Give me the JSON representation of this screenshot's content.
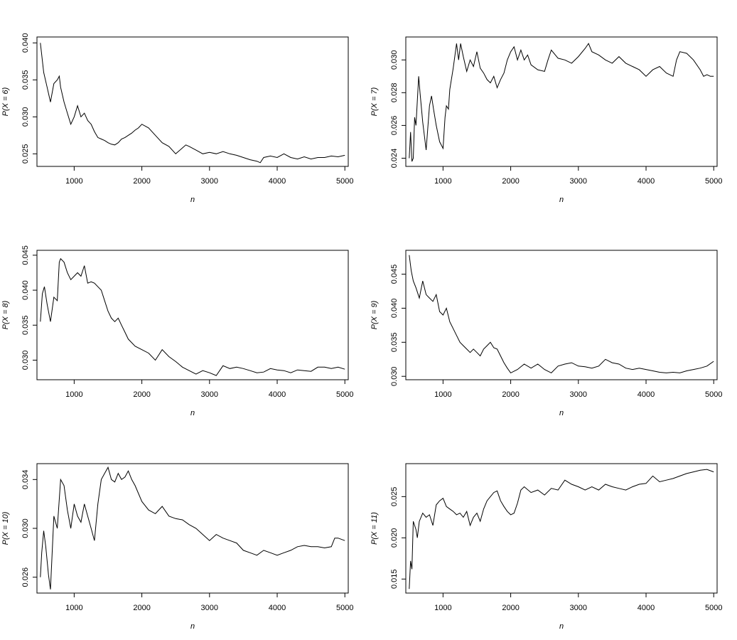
{
  "figure": {
    "background": "#ffffff",
    "line_color": "#000000"
  },
  "chart_data": [
    {
      "type": "line",
      "xlabel": "n",
      "ylabel": "P(X = 6)",
      "xlim": [
        450,
        5050
      ],
      "ylim": [
        0.0233,
        0.0408
      ],
      "xticks": [
        1000,
        2000,
        3000,
        4000,
        5000
      ],
      "yticks": [
        0.025,
        0.03,
        0.035,
        0.04
      ],
      "ytick_labels": [
        "0.025",
        "0.030",
        "0.035",
        "0.040"
      ],
      "grid": false,
      "series": [
        {
          "x": [
            500,
            550,
            600,
            650,
            700,
            750,
            780,
            800,
            850,
            900,
            950,
            1000,
            1050,
            1100,
            1150,
            1200,
            1250,
            1300,
            1350,
            1400,
            1450,
            1500,
            1550,
            1600,
            1650,
            1700,
            1750,
            1800,
            1850,
            1900,
            1950,
            2000,
            2100,
            2200,
            2300,
            2400,
            2500,
            2600,
            2650,
            2700,
            2800,
            2900,
            3000,
            3100,
            3200,
            3300,
            3400,
            3500,
            3600,
            3700,
            3750,
            3800,
            3900,
            4000,
            4100,
            4200,
            4300,
            4400,
            4500,
            4600,
            4700,
            4800,
            4900,
            5000
          ],
          "y": [
            0.04,
            0.036,
            0.034,
            0.032,
            0.0345,
            0.035,
            0.0355,
            0.034,
            0.032,
            0.0305,
            0.029,
            0.03,
            0.0315,
            0.03,
            0.0305,
            0.0295,
            0.029,
            0.028,
            0.0272,
            0.027,
            0.0268,
            0.0265,
            0.0263,
            0.0262,
            0.0265,
            0.027,
            0.0272,
            0.0275,
            0.0278,
            0.0282,
            0.0285,
            0.029,
            0.0285,
            0.0275,
            0.0265,
            0.026,
            0.025,
            0.0258,
            0.0262,
            0.026,
            0.0255,
            0.025,
            0.0252,
            0.025,
            0.0253,
            0.025,
            0.0248,
            0.0245,
            0.0242,
            0.024,
            0.0238,
            0.0245,
            0.0247,
            0.0245,
            0.025,
            0.0245,
            0.0243,
            0.0246,
            0.0243,
            0.0245,
            0.0245,
            0.0247,
            0.0246,
            0.0248
          ]
        }
      ]
    },
    {
      "type": "line",
      "xlabel": "n",
      "ylabel": "P(X = 7)",
      "xlim": [
        450,
        5050
      ],
      "ylim": [
        0.0235,
        0.0314
      ],
      "xticks": [
        1000,
        2000,
        3000,
        4000,
        5000
      ],
      "yticks": [
        0.024,
        0.026,
        0.028,
        0.03
      ],
      "ytick_labels": [
        "0.024",
        "0.026",
        "0.028",
        "0.030"
      ],
      "grid": false,
      "series": [
        {
          "x": [
            500,
            520,
            540,
            560,
            580,
            600,
            620,
            640,
            660,
            700,
            750,
            800,
            830,
            860,
            900,
            950,
            1000,
            1030,
            1050,
            1080,
            1100,
            1150,
            1200,
            1230,
            1260,
            1300,
            1350,
            1400,
            1450,
            1500,
            1550,
            1600,
            1650,
            1700,
            1750,
            1800,
            1850,
            1900,
            1950,
            2000,
            2050,
            2100,
            2150,
            2200,
            2250,
            2300,
            2400,
            2500,
            2550,
            2600,
            2700,
            2800,
            2900,
            3000,
            3100,
            3150,
            3200,
            3300,
            3400,
            3500,
            3600,
            3700,
            3800,
            3900,
            4000,
            4100,
            4200,
            4300,
            4400,
            4450,
            4500,
            4600,
            4700,
            4800,
            4850,
            4900,
            4950,
            5000
          ],
          "y": [
            0.024,
            0.0256,
            0.0238,
            0.024,
            0.0265,
            0.026,
            0.0275,
            0.029,
            0.028,
            0.0262,
            0.0245,
            0.0272,
            0.0278,
            0.027,
            0.026,
            0.025,
            0.0246,
            0.0265,
            0.0272,
            0.027,
            0.0282,
            0.0295,
            0.031,
            0.03,
            0.031,
            0.0302,
            0.0293,
            0.03,
            0.0296,
            0.0305,
            0.0295,
            0.0292,
            0.0288,
            0.0286,
            0.029,
            0.0283,
            0.0288,
            0.0292,
            0.03,
            0.0305,
            0.0308,
            0.03,
            0.0306,
            0.03,
            0.0303,
            0.0297,
            0.0294,
            0.0293,
            0.03,
            0.0306,
            0.0301,
            0.03,
            0.0298,
            0.0302,
            0.0307,
            0.031,
            0.0305,
            0.0303,
            0.03,
            0.0298,
            0.0302,
            0.0298,
            0.0296,
            0.0294,
            0.029,
            0.0294,
            0.0296,
            0.0292,
            0.029,
            0.03,
            0.0305,
            0.0304,
            0.03,
            0.0294,
            0.029,
            0.0291,
            0.029,
            0.029
          ]
        }
      ]
    },
    {
      "type": "line",
      "xlabel": "n",
      "ylabel": "P(X = 8)",
      "xlim": [
        450,
        5050
      ],
      "ylim": [
        0.0272,
        0.0457
      ],
      "xticks": [
        1000,
        2000,
        3000,
        4000,
        5000
      ],
      "yticks": [
        0.03,
        0.035,
        0.04,
        0.045
      ],
      "ytick_labels": [
        "0.030",
        "0.035",
        "0.040",
        "0.045"
      ],
      "grid": false,
      "series": [
        {
          "x": [
            500,
            530,
            560,
            600,
            650,
            700,
            750,
            780,
            800,
            850,
            900,
            950,
            1000,
            1050,
            1100,
            1150,
            1200,
            1250,
            1300,
            1350,
            1400,
            1450,
            1500,
            1550,
            1600,
            1650,
            1700,
            1750,
            1800,
            1900,
            2000,
            2100,
            2200,
            2300,
            2400,
            2500,
            2600,
            2700,
            2800,
            2900,
            3000,
            3100,
            3200,
            3300,
            3400,
            3500,
            3600,
            3700,
            3800,
            3900,
            4000,
            4100,
            4200,
            4300,
            4400,
            4500,
            4600,
            4700,
            4800,
            4900,
            5000
          ],
          "y": [
            0.0355,
            0.0395,
            0.0405,
            0.038,
            0.0355,
            0.039,
            0.0385,
            0.044,
            0.0445,
            0.044,
            0.0425,
            0.0415,
            0.042,
            0.0425,
            0.042,
            0.0435,
            0.041,
            0.0412,
            0.041,
            0.0405,
            0.04,
            0.0385,
            0.037,
            0.036,
            0.0355,
            0.036,
            0.035,
            0.034,
            0.033,
            0.032,
            0.0315,
            0.031,
            0.03,
            0.0315,
            0.0305,
            0.0298,
            0.029,
            0.0285,
            0.028,
            0.0285,
            0.0282,
            0.0278,
            0.0292,
            0.0288,
            0.029,
            0.0288,
            0.0285,
            0.0282,
            0.0283,
            0.0288,
            0.0286,
            0.0285,
            0.0282,
            0.0286,
            0.0285,
            0.0284,
            0.029,
            0.029,
            0.0288,
            0.029,
            0.0287
          ]
        }
      ]
    },
    {
      "type": "line",
      "xlabel": "n",
      "ylabel": "P(X = 9)",
      "xlim": [
        450,
        5050
      ],
      "ylim": [
        0.0295,
        0.0485
      ],
      "xticks": [
        1000,
        2000,
        3000,
        4000,
        5000
      ],
      "yticks": [
        0.03,
        0.035,
        0.04,
        0.045
      ],
      "ytick_labels": [
        "0.030",
        "0.035",
        "0.040",
        "0.045"
      ],
      "grid": false,
      "series": [
        {
          "x": [
            500,
            530,
            560,
            600,
            650,
            700,
            750,
            800,
            850,
            900,
            950,
            1000,
            1050,
            1100,
            1150,
            1200,
            1250,
            1300,
            1350,
            1400,
            1450,
            1500,
            1550,
            1600,
            1650,
            1700,
            1750,
            1800,
            1850,
            1900,
            1950,
            2000,
            2100,
            2200,
            2300,
            2400,
            2500,
            2600,
            2700,
            2800,
            2900,
            3000,
            3100,
            3200,
            3300,
            3400,
            3500,
            3600,
            3700,
            3800,
            3900,
            4000,
            4100,
            4200,
            4300,
            4400,
            4500,
            4600,
            4700,
            4800,
            4900,
            5000
          ],
          "y": [
            0.0478,
            0.0455,
            0.044,
            0.043,
            0.0415,
            0.044,
            0.042,
            0.0415,
            0.041,
            0.042,
            0.0395,
            0.039,
            0.04,
            0.038,
            0.037,
            0.036,
            0.035,
            0.0345,
            0.034,
            0.0335,
            0.034,
            0.0335,
            0.033,
            0.034,
            0.0345,
            0.035,
            0.0342,
            0.034,
            0.033,
            0.032,
            0.0312,
            0.0305,
            0.031,
            0.0318,
            0.0312,
            0.0318,
            0.031,
            0.0305,
            0.0315,
            0.0318,
            0.032,
            0.0315,
            0.0314,
            0.0312,
            0.0315,
            0.0325,
            0.032,
            0.0318,
            0.0312,
            0.031,
            0.0312,
            0.031,
            0.0308,
            0.0306,
            0.0305,
            0.0306,
            0.0305,
            0.0308,
            0.031,
            0.0312,
            0.0315,
            0.0322
          ]
        }
      ]
    },
    {
      "type": "line",
      "xlabel": "n",
      "ylabel": "P(X = 10)",
      "xlim": [
        450,
        5050
      ],
      "ylim": [
        0.0247,
        0.0353
      ],
      "xticks": [
        1000,
        2000,
        3000,
        4000,
        5000
      ],
      "yticks": [
        0.026,
        0.03,
        0.034
      ],
      "ytick_labels": [
        "0.026",
        "0.030",
        "0.034"
      ],
      "grid": false,
      "series": [
        {
          "x": [
            500,
            520,
            550,
            580,
            620,
            650,
            700,
            750,
            800,
            850,
            900,
            950,
            1000,
            1050,
            1100,
            1150,
            1200,
            1250,
            1300,
            1350,
            1400,
            1450,
            1500,
            1550,
            1600,
            1650,
            1700,
            1750,
            1800,
            1850,
            1900,
            2000,
            2100,
            2200,
            2300,
            2400,
            2500,
            2600,
            2700,
            2800,
            2900,
            3000,
            3100,
            3200,
            3300,
            3400,
            3500,
            3600,
            3700,
            3800,
            3900,
            4000,
            4100,
            4200,
            4300,
            4400,
            4500,
            4600,
            4700,
            4800,
            4850,
            4900,
            5000
          ],
          "y": [
            0.026,
            0.028,
            0.0298,
            0.0285,
            0.0262,
            0.025,
            0.031,
            0.03,
            0.034,
            0.0335,
            0.0315,
            0.03,
            0.032,
            0.031,
            0.0305,
            0.032,
            0.031,
            0.03,
            0.029,
            0.032,
            0.034,
            0.0345,
            0.035,
            0.034,
            0.0338,
            0.0345,
            0.034,
            0.0342,
            0.0347,
            0.034,
            0.0335,
            0.0322,
            0.0315,
            0.0312,
            0.0318,
            0.031,
            0.0308,
            0.0307,
            0.0303,
            0.03,
            0.0295,
            0.029,
            0.0295,
            0.0292,
            0.029,
            0.0288,
            0.0282,
            0.028,
            0.0278,
            0.0282,
            0.028,
            0.0278,
            0.028,
            0.0282,
            0.0285,
            0.0286,
            0.0285,
            0.0285,
            0.0284,
            0.0285,
            0.0292,
            0.0292,
            0.029
          ]
        }
      ]
    },
    {
      "type": "line",
      "xlabel": "n",
      "ylabel": "P(X = 11)",
      "xlim": [
        450,
        5050
      ],
      "ylim": [
        0.0133,
        0.029
      ],
      "xticks": [
        1000,
        2000,
        3000,
        4000,
        5000
      ],
      "yticks": [
        0.015,
        0.02,
        0.025
      ],
      "ytick_labels": [
        "0.015",
        "0.020",
        "0.025"
      ],
      "grid": false,
      "series": [
        {
          "x": [
            500,
            520,
            540,
            560,
            580,
            600,
            620,
            650,
            700,
            750,
            800,
            850,
            900,
            950,
            1000,
            1050,
            1100,
            1150,
            1200,
            1250,
            1300,
            1350,
            1400,
            1450,
            1500,
            1550,
            1600,
            1650,
            1700,
            1750,
            1800,
            1850,
            1900,
            1950,
            2000,
            2050,
            2100,
            2150,
            2200,
            2300,
            2400,
            2500,
            2600,
            2700,
            2800,
            2900,
            3000,
            3100,
            3200,
            3300,
            3400,
            3500,
            3600,
            3700,
            3800,
            3900,
            4000,
            4100,
            4200,
            4300,
            4400,
            4500,
            4600,
            4700,
            4800,
            4900,
            5000
          ],
          "y": [
            0.0138,
            0.0172,
            0.0162,
            0.022,
            0.0215,
            0.021,
            0.02,
            0.022,
            0.023,
            0.0225,
            0.0228,
            0.0215,
            0.024,
            0.0245,
            0.0248,
            0.0238,
            0.0235,
            0.0232,
            0.0228,
            0.023,
            0.0225,
            0.0232,
            0.0215,
            0.0225,
            0.023,
            0.022,
            0.0235,
            0.0245,
            0.025,
            0.0255,
            0.0257,
            0.0245,
            0.0238,
            0.0232,
            0.0228,
            0.023,
            0.0242,
            0.0258,
            0.0262,
            0.0255,
            0.0258,
            0.0252,
            0.026,
            0.0258,
            0.027,
            0.0265,
            0.0262,
            0.0258,
            0.0262,
            0.0258,
            0.0265,
            0.0262,
            0.026,
            0.0258,
            0.0262,
            0.0265,
            0.0266,
            0.0275,
            0.0268,
            0.027,
            0.0272,
            0.0275,
            0.0278,
            0.028,
            0.0282,
            0.0283,
            0.028
          ]
        }
      ]
    }
  ]
}
